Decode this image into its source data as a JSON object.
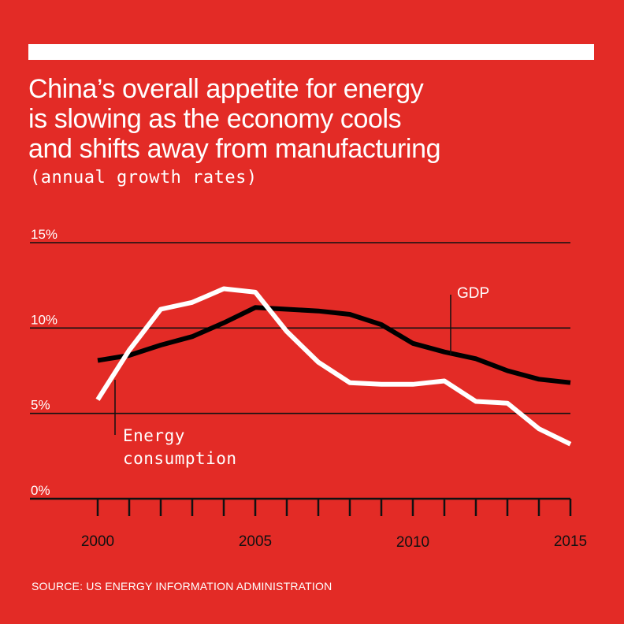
{
  "header": {
    "title_lines": [
      "China’s overall appetite for energy",
      "is slowing as the economy cools",
      "and shifts away from manufacturing"
    ],
    "subtitle": "(annual growth rates)"
  },
  "footer": {
    "source": "SOURCE: US ENERGY INFORMATION ADMINISTRATION"
  },
  "colors": {
    "background": "#e32b26",
    "energy": "#ffffff",
    "gdp": "#000000"
  },
  "chart_data": {
    "type": "line",
    "title": "China’s overall appetite for energy is slowing as the economy cools and shifts away from manufacturing",
    "subtitle": "(annual growth rates)",
    "x": [
      2000,
      2001,
      2002,
      2003,
      2004,
      2005,
      2006,
      2007,
      2008,
      2009,
      2010,
      2011,
      2012,
      2013,
      2014,
      2015
    ],
    "series": [
      {
        "name": "Energy consumption",
        "label_lines": [
          "Energy",
          "consumption"
        ],
        "color": "#ffffff",
        "values": [
          5.8,
          8.7,
          11.1,
          11.5,
          12.3,
          12.1,
          9.8,
          8.0,
          6.8,
          6.7,
          6.7,
          6.9,
          5.7,
          5.6,
          4.1,
          3.2
        ]
      },
      {
        "name": "GDP",
        "label_lines": [
          "GDP"
        ],
        "color": "#000000",
        "values": [
          8.1,
          8.4,
          9.0,
          9.5,
          10.3,
          11.2,
          11.1,
          11.0,
          10.8,
          10.2,
          9.1,
          8.6,
          8.2,
          7.5,
          7.0,
          6.8
        ]
      }
    ],
    "y_ticks": [
      0,
      5,
      10,
      15
    ],
    "y_tick_labels": [
      "0%",
      "5%",
      "10%",
      "15%"
    ],
    "x_tick_labels": [
      "2000",
      "2005",
      "2010",
      "2015"
    ],
    "x_tick_label_years": [
      2000,
      2005,
      2010,
      2015
    ],
    "xlim": [
      2000,
      2015
    ],
    "ylim": [
      0,
      15
    ],
    "xlabel": "",
    "ylabel": "",
    "grid": true,
    "legend": "direct labels on lines"
  }
}
